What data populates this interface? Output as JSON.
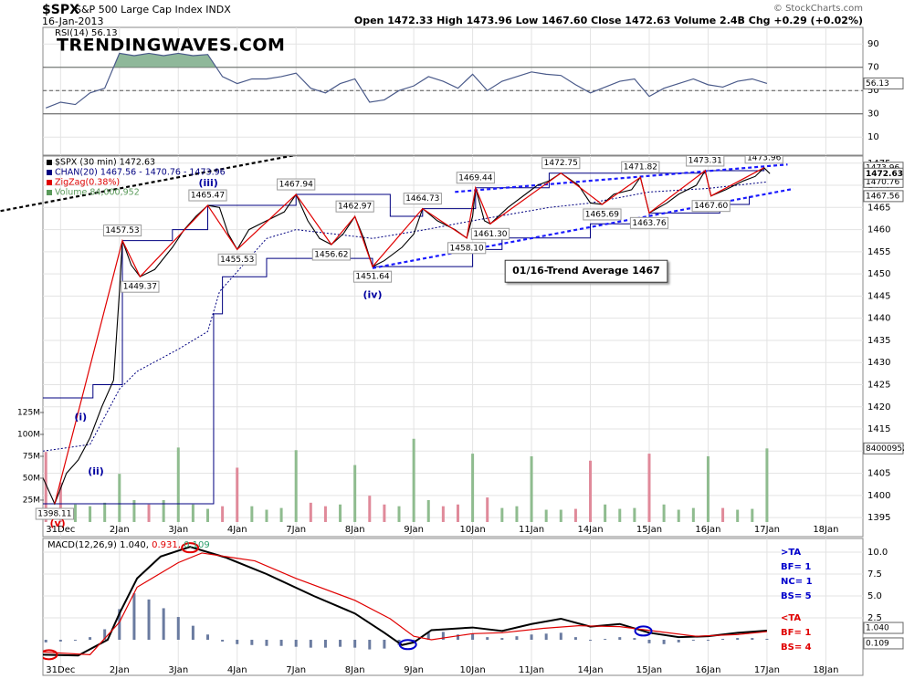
{
  "header": {
    "symbol": "$SPX",
    "name": "S&P 500 Large Cap Index INDX",
    "date": "16-Jan-2013",
    "quote": "Open 1472.33  High 1473.96  Low 1467.60  Close 1472.63  Volume 2.4B  Chg +0.29 (+0.02%)",
    "credit": "© StockCharts.com"
  },
  "chart_data": [
    {
      "type": "line",
      "title": "RSI(14) 56.13",
      "watermark": "TRENDINGWAVES.COM",
      "xlim": [
        -0.3,
        13.63
      ],
      "ylim": [
        -5.5,
        104.3
      ],
      "yticks": [
        10,
        30,
        50,
        70,
        90
      ],
      "levels": [
        30,
        70
      ],
      "midline": 50,
      "fill_above": 70,
      "color": "#4a5a8a",
      "fill_color": "#8fb89a",
      "x": [
        -0.25,
        0,
        0.25,
        0.5,
        0.75,
        1,
        1.25,
        1.5,
        1.75,
        2,
        2.25,
        2.5,
        2.75,
        3,
        3.25,
        3.5,
        3.75,
        4,
        4.25,
        4.5,
        4.75,
        5,
        5.25,
        5.5,
        5.75,
        6,
        6.25,
        6.5,
        6.75,
        7,
        7.25,
        7.5,
        7.75,
        8,
        8.25,
        8.5,
        8.75,
        9,
        9.25,
        9.5,
        9.75,
        10,
        10.25,
        10.5,
        10.75,
        11,
        11.25,
        11.5,
        11.75,
        12
      ],
      "values": [
        35,
        40,
        38,
        48,
        52,
        82,
        80,
        82,
        80,
        82,
        80,
        81,
        62,
        56,
        60,
        60,
        62,
        65,
        52,
        48,
        56,
        60,
        40,
        42,
        50,
        54,
        62,
        58,
        52,
        64,
        50,
        58,
        62,
        66,
        64,
        63,
        55,
        48,
        53,
        58,
        60,
        45,
        52,
        56,
        60,
        55,
        53,
        58,
        60,
        56.13
      ]
    },
    {
      "type": "line",
      "legend": [
        "$SPX (30 min) 1472.63",
        "CHAN(20) 1467.56 - 1470.76 - 1473.96",
        "ZigZag(0.38%)",
        "Volume 84,000,952"
      ],
      "legend_colors": [
        "#000000",
        "#000080",
        "#e00000",
        "#5a9a5a"
      ],
      "xlim": [
        -0.3,
        13.63
      ],
      "xticks": [
        {
          "value": 0,
          "label": "31Dec"
        },
        {
          "value": 1,
          "label": "2Jan"
        },
        {
          "value": 2,
          "label": "3Jan"
        },
        {
          "value": 3,
          "label": "4Jan"
        },
        {
          "value": 4,
          "label": "7Jan"
        },
        {
          "value": 5,
          "label": "8Jan"
        },
        {
          "value": 6,
          "label": "9Jan"
        },
        {
          "value": 7,
          "label": "10Jan"
        },
        {
          "value": 8,
          "label": "11Jan"
        },
        {
          "value": 9,
          "label": "14Jan"
        },
        {
          "value": 10,
          "label": "15Jan"
        },
        {
          "value": 11,
          "label": "16Jan"
        },
        {
          "value": 12,
          "label": "17Jan"
        },
        {
          "value": 13,
          "label": "18Jan"
        }
      ],
      "ylim": [
        1390.7,
        1476.6
      ],
      "yticks": [
        1395,
        1400,
        1405,
        1410,
        1415,
        1420,
        1425,
        1430,
        1435,
        1440,
        1445,
        1450,
        1455,
        1460,
        1465,
        1470,
        1475
      ],
      "grid": true,
      "color": "#000000",
      "zigzag_color": "#e00000",
      "x": [
        -0.3,
        -0.1,
        0.1,
        0.3,
        0.5,
        0.7,
        0.9,
        1.0,
        1.05,
        1.2,
        1.35,
        1.6,
        1.9,
        2.1,
        2.3,
        2.5,
        2.7,
        2.85,
        3.0,
        3.2,
        3.5,
        3.8,
        4.0,
        4.2,
        4.4,
        4.6,
        4.8,
        5.0,
        5.15,
        5.3,
        5.5,
        5.8,
        6.0,
        6.15,
        6.4,
        6.7,
        6.9,
        7.0,
        7.05,
        7.2,
        7.3,
        7.6,
        7.9,
        8.1,
        8.3,
        8.5,
        8.8,
        9.0,
        9.2,
        9.4,
        9.7,
        9.85,
        10.0,
        10.3,
        10.5,
        10.8,
        10.95,
        11.05,
        11.3,
        11.6,
        11.8,
        11.95,
        12.05
      ],
      "values": [
        1404,
        1398.11,
        1405,
        1408,
        1413,
        1420,
        1426,
        1446,
        1457.53,
        1452,
        1449.37,
        1451,
        1456,
        1460,
        1463,
        1465.47,
        1465,
        1459,
        1455.53,
        1460,
        1462,
        1464,
        1467.94,
        1462,
        1458,
        1456.62,
        1459,
        1462.97,
        1458,
        1451.64,
        1453,
        1456,
        1459,
        1464.73,
        1462,
        1460,
        1458.1,
        1463,
        1469.44,
        1462,
        1461.3,
        1465,
        1468,
        1470,
        1471,
        1472.75,
        1470,
        1466,
        1465.69,
        1468,
        1469,
        1471.82,
        1463.76,
        1466,
        1468,
        1470,
        1473.31,
        1467.6,
        1469,
        1471,
        1472,
        1473.96,
        1472.63
      ],
      "value_labels": [
        null,
        "1398.11",
        null,
        null,
        null,
        null,
        null,
        null,
        "1457.53",
        null,
        "1449.37",
        null,
        null,
        null,
        null,
        "1465.47",
        null,
        null,
        "1455.53",
        null,
        null,
        null,
        "1467.94",
        null,
        null,
        "1456.62",
        null,
        "1462.97",
        null,
        "1451.64",
        null,
        null,
        null,
        "1464.73",
        null,
        null,
        "1458.10",
        null,
        "1469.44",
        null,
        "1461.30",
        null,
        null,
        null,
        null,
        "1472.75",
        null,
        null,
        "1465.69",
        null,
        null,
        "1471.82",
        "1463.76",
        null,
        null,
        null,
        "1473.31",
        "1467.60",
        null,
        null,
        null,
        "1473.96",
        null
      ],
      "channel": {
        "color": "#000080",
        "upper": {
          "x": [
            -0.3,
            0.55,
            1.05,
            1.9,
            2.5,
            4.0,
            5.6,
            6.15,
            7.05,
            8.3,
            10.95,
            11.95
          ],
          "values": [
            1422,
            1425,
            1457.53,
            1460,
            1465.47,
            1467.94,
            1463,
            1464.73,
            1469.44,
            1472.75,
            1473.31,
            1473.96
          ]
        },
        "middle": {
          "x": [
            -0.3,
            0.5,
            1.0,
            1.3,
            2.0,
            2.5,
            2.7,
            3.5,
            4.0,
            5.3,
            6.2,
            7.0,
            8.3,
            9.0,
            10.0,
            11.0,
            12.0
          ],
          "values": [
            1410,
            1411.5,
            1424,
            1428,
            1433,
            1437,
            1446,
            1458,
            1460,
            1458,
            1460,
            1462,
            1465,
            1466,
            1468.5,
            1469.3,
            1470.76
          ]
        },
        "lower": {
          "x": [
            -0.3,
            2.6,
            2.75,
            3.5,
            5.3,
            7.0,
            7.5,
            9.0,
            10.0,
            11.2,
            11.7
          ],
          "values": [
            1398.11,
            1441,
            1449.37,
            1453.5,
            1451.64,
            1455.5,
            1458.1,
            1461.3,
            1463.76,
            1465.69,
            1467.56
          ]
        }
      },
      "volume": {
        "ylim": [
          -16.7,
          417.7
        ],
        "yticks": [
          {
            "value": 25,
            "label": "25M"
          },
          {
            "value": 50,
            "label": "50M"
          },
          {
            "value": 75,
            "label": "75M"
          },
          {
            "value": 100,
            "label": "100M"
          },
          {
            "value": 125,
            "label": "125M"
          }
        ],
        "up_color": "#8fbc8f",
        "down_color": "#e08a9a",
        "x": [
          -0.25,
          0,
          0.25,
          0.5,
          0.75,
          1,
          1.25,
          1.5,
          1.75,
          2,
          2.25,
          2.5,
          2.75,
          3,
          3.25,
          3.5,
          3.75,
          4,
          4.25,
          4.5,
          4.75,
          5,
          5.25,
          5.5,
          5.75,
          6,
          6.25,
          6.5,
          6.75,
          7,
          7.25,
          7.5,
          7.75,
          8,
          8.25,
          8.5,
          8.75,
          9,
          9.25,
          9.5,
          9.75,
          10,
          10.25,
          10.5,
          10.75,
          11,
          11.25,
          11.5,
          11.75,
          12
        ],
        "values": [
          80,
          45,
          20,
          18,
          22,
          55,
          25,
          20,
          25,
          85,
          20,
          15,
          18,
          62,
          18,
          14,
          16,
          82,
          22,
          18,
          20,
          65,
          30,
          20,
          18,
          95,
          25,
          18,
          20,
          78,
          28,
          16,
          18,
          75,
          14,
          14,
          15,
          70,
          20,
          15,
          16,
          78,
          20,
          14,
          16,
          75,
          16,
          14,
          15,
          84.000952
        ],
        "value_labels": [
          null,
          null,
          null,
          null,
          null,
          null,
          null,
          null,
          null,
          null,
          null,
          null,
          null,
          null,
          null,
          null,
          null,
          null,
          null,
          null,
          null,
          null,
          null,
          null,
          null,
          null,
          null,
          null,
          null,
          null,
          null,
          null,
          null,
          null,
          null,
          null,
          null,
          null,
          null,
          null,
          null,
          null,
          null,
          null,
          null,
          null,
          null,
          null,
          null,
          "84000952"
        ]
      },
      "trendlines": [
        {
          "x": [
            6.7,
            12.35
          ],
          "values": [
            1468.5,
            1474.7
          ],
          "color": "#1a1aff"
        },
        {
          "x": [
            5.3,
            12.45
          ],
          "values": [
            1451.3,
            1469.2
          ],
          "color": "#1a1aff"
        },
        {
          "x": [
            -1.02,
            4.1
          ],
          "values": [
            1464.2,
            1477.1
          ],
          "color": "#000000"
        }
      ],
      "annotations": [
        {
          "text": "(i)",
          "x": 0.34,
          "y": 1417.6,
          "color": "#0000a0"
        },
        {
          "text": "(ii)",
          "x": 0.6,
          "y": 1405.3,
          "color": "#0000a0"
        },
        {
          "text": "(iii)",
          "x": 2.51,
          "y": 1470.4,
          "color": "#0000a0"
        },
        {
          "text": "(iv)",
          "x": 5.3,
          "y": 1445.2,
          "color": "#0000a0"
        },
        {
          "text": "(v)",
          "x": -0.05,
          "y": 1393.6,
          "color": "#e00000"
        }
      ],
      "note": {
        "text": "01/16-Trend Average 1467",
        "x": 8.93,
        "y": 1450.6
      }
    },
    {
      "type": "line",
      "legend": [
        "MACD(12,26,9) 1.040,",
        "0.931,",
        "0.109"
      ],
      "legend_colors": [
        "#000000",
        "#e00000",
        "#2a9d6b"
      ],
      "xlim": [
        -0.3,
        13.63
      ],
      "xticks": [
        {
          "value": 0,
          "label": "31Dec"
        },
        {
          "value": 1,
          "label": "2Jan"
        },
        {
          "value": 2,
          "label": "3Jan"
        },
        {
          "value": 3,
          "label": "4Jan"
        },
        {
          "value": 4,
          "label": "7Jan"
        },
        {
          "value": 5,
          "label": "8Jan"
        },
        {
          "value": 6,
          "label": "9Jan"
        },
        {
          "value": 7,
          "label": "10Jan"
        },
        {
          "value": 8,
          "label": "11Jan"
        },
        {
          "value": 9,
          "label": "14Jan"
        },
        {
          "value": 10,
          "label": "15Jan"
        },
        {
          "value": 11,
          "label": "16Jan"
        },
        {
          "value": 12,
          "label": "17Jan"
        },
        {
          "value": 13,
          "label": "18Jan"
        }
      ],
      "ylim": [
        -4.06,
        11.56
      ],
      "yticks": [
        2.5,
        {
          "value": 5,
          "label": "5.0"
        },
        7.5,
        {
          "value": 10,
          "label": "10.0"
        }
      ],
      "grid": true,
      "series": [
        {
          "x": [
            -0.3,
            0.3,
            0.8,
            1.0,
            1.3,
            1.7,
            2.2,
            2.8,
            3.5,
            4.3,
            5.0,
            5.5,
            5.8,
            6.0,
            6.3,
            7.0,
            7.5,
            8.0,
            8.5,
            9.0,
            9.5,
            10.0,
            10.5,
            11.0,
            11.5,
            12.0
          ],
          "values": [
            -1.7,
            -1.8,
            0,
            3,
            7,
            9.5,
            10.6,
            9.4,
            7.5,
            5,
            3,
            0.8,
            -0.6,
            -0.3,
            1.1,
            1.4,
            1.0,
            1.8,
            2.4,
            1.5,
            1.8,
            0.8,
            0.3,
            0.4,
            0.8,
            1.04
          ],
          "value_labels": [
            null,
            null,
            null,
            null,
            null,
            null,
            null,
            null,
            null,
            null,
            null,
            null,
            null,
            null,
            null,
            null,
            null,
            null,
            null,
            null,
            null,
            null,
            null,
            null,
            null,
            "1.040"
          ],
          "color": "#000000"
        },
        {
          "x": [
            -0.3,
            0.5,
            1.0,
            1.3,
            2.0,
            2.4,
            3.3,
            4.0,
            5.0,
            5.6,
            6.0,
            6.3,
            7.0,
            7.5,
            8.2,
            8.8,
            9.5,
            10.2,
            10.8,
            11.5,
            12.0
          ],
          "values": [
            -1.4,
            -1.7,
            2,
            6,
            8.8,
            9.9,
            9,
            7,
            4.5,
            2.4,
            0.4,
            0,
            0.7,
            0.8,
            1.3,
            1.6,
            1.5,
            0.9,
            0.4,
            0.6,
            0.931
          ],
          "color": "#e00000"
        }
      ],
      "histogram": {
        "color": "#6a7ba0",
        "x": [
          -0.25,
          0,
          0.25,
          0.5,
          0.75,
          1,
          1.25,
          1.5,
          1.75,
          2,
          2.25,
          2.5,
          2.75,
          3,
          3.25,
          3.5,
          3.75,
          4,
          4.25,
          4.5,
          4.75,
          5,
          5.25,
          5.5,
          5.75,
          6,
          6.25,
          6.5,
          6.75,
          7,
          7.25,
          7.5,
          7.75,
          8,
          8.25,
          8.5,
          8.75,
          9,
          9.25,
          9.5,
          9.75,
          10,
          10.25,
          10.5,
          10.75,
          11,
          11.25,
          11.5,
          11.75,
          12
        ],
        "values": [
          -0.3,
          -0.2,
          -0.1,
          0.3,
          1.2,
          3.5,
          5.3,
          4.6,
          3.6,
          2.6,
          1.6,
          0.6,
          -0.2,
          -0.5,
          -0.6,
          -0.7,
          -0.7,
          -0.8,
          -0.9,
          -0.9,
          -0.8,
          -0.9,
          -1.1,
          -1.0,
          -0.6,
          -0.1,
          0.8,
          0.9,
          0.6,
          0.7,
          0.3,
          0.2,
          0.4,
          0.6,
          0.7,
          0.8,
          0.3,
          -0.1,
          0.1,
          0.3,
          0.2,
          -0.4,
          -0.5,
          -0.3,
          -0.1,
          -0.1,
          0.1,
          0.2,
          0.2,
          0.109
        ]
      },
      "crossovers": [
        {
          "x": -0.2,
          "y": -1.7,
          "color": "#e00000"
        },
        {
          "x": 2.2,
          "y": 10.5,
          "color": "#e00000"
        },
        {
          "x": 5.9,
          "y": -0.55,
          "color": "#0000cc"
        },
        {
          "x": 9.9,
          "y": 1.0,
          "color": "#0000cc"
        }
      ],
      "notes": [
        {
          "color": "#0000cc",
          "lines": [
            ">TA",
            "BF= 1",
            "NC= 1",
            "BS= 5"
          ]
        },
        {
          "color": "#e00000",
          "lines": [
            "<TA",
            "BF= 1",
            "BS= 4"
          ]
        }
      ]
    }
  ]
}
